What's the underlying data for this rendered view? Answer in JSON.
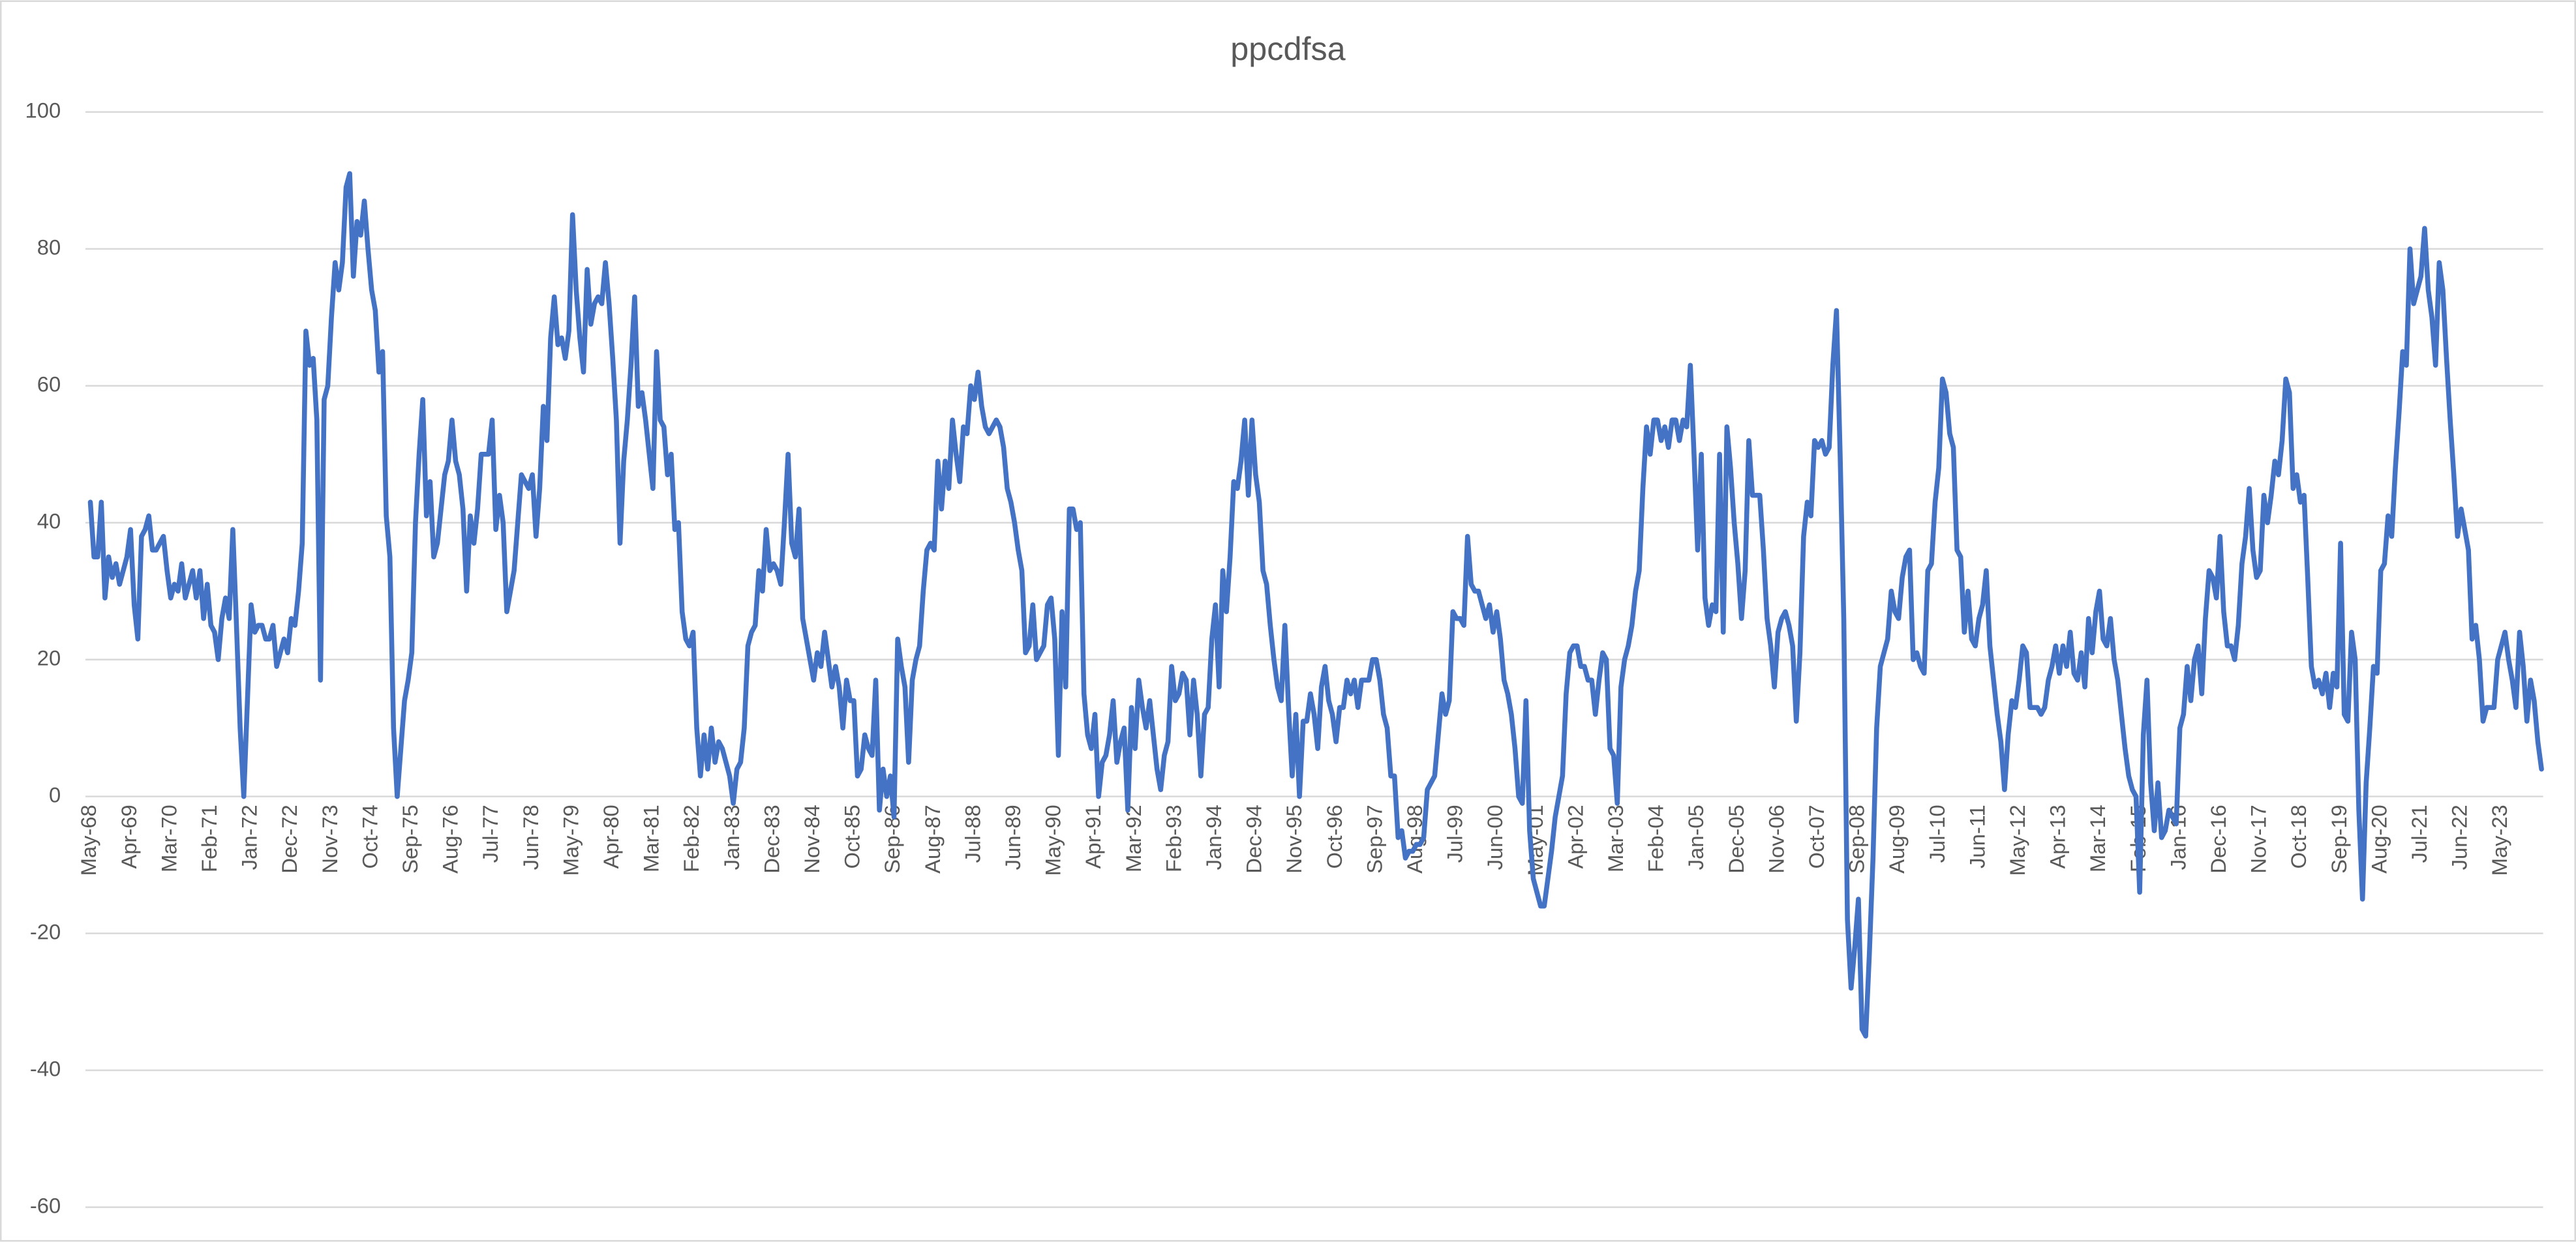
{
  "chart_data": {
    "type": "line",
    "title": "ppcdfsa",
    "categories": [
      "May-68",
      null,
      null,
      null,
      null,
      null,
      null,
      null,
      null,
      null,
      null,
      "Apr-69",
      null,
      null,
      null,
      null,
      null,
      null,
      null,
      null,
      null,
      null,
      "Mar-70",
      null,
      null,
      null,
      null,
      null,
      null,
      null,
      null,
      null,
      null,
      "Feb-71",
      null,
      null,
      null,
      null,
      null,
      null,
      null,
      null,
      null,
      null,
      "Jan-72",
      null,
      null,
      null,
      null,
      null,
      null,
      null,
      null,
      null,
      null,
      "Dec-72",
      null,
      null,
      null,
      null,
      null,
      null,
      null,
      null,
      null,
      null,
      "Nov-73",
      null,
      null,
      null,
      null,
      null,
      null,
      null,
      null,
      null,
      null,
      "Oct-74",
      null,
      null,
      null,
      null,
      null,
      null,
      null,
      null,
      null,
      null,
      "Sep-75",
      null,
      null,
      null,
      null,
      null,
      null,
      null,
      null,
      null,
      null,
      "Aug-76",
      null,
      null,
      null,
      null,
      null,
      null,
      null,
      null,
      null,
      null,
      "Jul-77",
      null,
      null,
      null,
      null,
      null,
      null,
      null,
      null,
      null,
      null,
      "Jun-78",
      null,
      null,
      null,
      null,
      null,
      null,
      null,
      null,
      null,
      null,
      "May-79",
      null,
      null,
      null,
      null,
      null,
      null,
      null,
      null,
      null,
      null,
      "Apr-80",
      null,
      null,
      null,
      null,
      null,
      null,
      null,
      null,
      null,
      null,
      "Mar-81",
      null,
      null,
      null,
      null,
      null,
      null,
      null,
      null,
      null,
      null,
      "Feb-82",
      null,
      null,
      null,
      null,
      null,
      null,
      null,
      null,
      null,
      null,
      "Jan-83",
      null,
      null,
      null,
      null,
      null,
      null,
      null,
      null,
      null,
      null,
      "Dec-83",
      null,
      null,
      null,
      null,
      null,
      null,
      null,
      null,
      null,
      null,
      "Nov-84",
      null,
      null,
      null,
      null,
      null,
      null,
      null,
      null,
      null,
      null,
      "Oct-85",
      null,
      null,
      null,
      null,
      null,
      null,
      null,
      null,
      null,
      null,
      "Sep-86",
      null,
      null,
      null,
      null,
      null,
      null,
      null,
      null,
      null,
      null,
      "Aug-87",
      null,
      null,
      null,
      null,
      null,
      null,
      null,
      null,
      null,
      null,
      "Jul-88",
      null,
      null,
      null,
      null,
      null,
      null,
      null,
      null,
      null,
      null,
      "Jun-89",
      null,
      null,
      null,
      null,
      null,
      null,
      null,
      null,
      null,
      null,
      "May-90",
      null,
      null,
      null,
      null,
      null,
      null,
      null,
      null,
      null,
      null,
      "Apr-91",
      null,
      null,
      null,
      null,
      null,
      null,
      null,
      null,
      null,
      null,
      "Mar-92",
      null,
      null,
      null,
      null,
      null,
      null,
      null,
      null,
      null,
      null,
      "Feb-93",
      null,
      null,
      null,
      null,
      null,
      null,
      null,
      null,
      null,
      null,
      "Jan-94",
      null,
      null,
      null,
      null,
      null,
      null,
      null,
      null,
      null,
      null,
      "Dec-94",
      null,
      null,
      null,
      null,
      null,
      null,
      null,
      null,
      null,
      null,
      "Nov-95",
      null,
      null,
      null,
      null,
      null,
      null,
      null,
      null,
      null,
      null,
      "Oct-96",
      null,
      null,
      null,
      null,
      null,
      null,
      null,
      null,
      null,
      null,
      "Sep-97",
      null,
      null,
      null,
      null,
      null,
      null,
      null,
      null,
      null,
      null,
      "Aug-98",
      null,
      null,
      null,
      null,
      null,
      null,
      null,
      null,
      null,
      null,
      "Jul-99",
      null,
      null,
      null,
      null,
      null,
      null,
      null,
      null,
      null,
      null,
      "Jun-00",
      null,
      null,
      null,
      null,
      null,
      null,
      null,
      null,
      null,
      null,
      "May-01",
      null,
      null,
      null,
      null,
      null,
      null,
      null,
      null,
      null,
      null,
      "Apr-02",
      null,
      null,
      null,
      null,
      null,
      null,
      null,
      null,
      null,
      null,
      "Mar-03",
      null,
      null,
      null,
      null,
      null,
      null,
      null,
      null,
      null,
      null,
      "Feb-04",
      null,
      null,
      null,
      null,
      null,
      null,
      null,
      null,
      null,
      null,
      "Jan-05",
      null,
      null,
      null,
      null,
      null,
      null,
      null,
      null,
      null,
      null,
      "Dec-05",
      null,
      null,
      null,
      null,
      null,
      null,
      null,
      null,
      null,
      null,
      "Nov-06",
      null,
      null,
      null,
      null,
      null,
      null,
      null,
      null,
      null,
      null,
      "Oct-07",
      null,
      null,
      null,
      null,
      null,
      null,
      null,
      null,
      null,
      null,
      "Sep-08",
      null,
      null,
      null,
      null,
      null,
      null,
      null,
      null,
      null,
      null,
      "Aug-09",
      null,
      null,
      null,
      null,
      null,
      null,
      null,
      null,
      null,
      null,
      "Jul-10",
      null,
      null,
      null,
      null,
      null,
      null,
      null,
      null,
      null,
      null,
      "Jun-11",
      null,
      null,
      null,
      null,
      null,
      null,
      null,
      null,
      null,
      null,
      "May-12",
      null,
      null,
      null,
      null,
      null,
      null,
      null,
      null,
      null,
      null,
      "Apr-13",
      null,
      null,
      null,
      null,
      null,
      null,
      null,
      null,
      null,
      null,
      "Mar-14",
      null,
      null,
      null,
      null,
      null,
      null,
      null,
      null,
      null,
      null,
      "Feb-15",
      null,
      null,
      null,
      null,
      null,
      null,
      null,
      null,
      null,
      null,
      "Jan-16",
      null,
      null,
      null,
      null,
      null,
      null,
      null,
      null,
      null,
      null,
      "Dec-16",
      null,
      null,
      null,
      null,
      null,
      null,
      null,
      null,
      null,
      null,
      "Nov-17",
      null,
      null,
      null,
      null,
      null,
      null,
      null,
      null,
      null,
      null,
      "Oct-18",
      null,
      null,
      null,
      null,
      null,
      null,
      null,
      null,
      null,
      null,
      "Sep-19",
      null,
      null,
      null,
      null,
      null,
      null,
      null,
      null,
      null,
      null,
      "Aug-20",
      null,
      null,
      null,
      null,
      null,
      null,
      null,
      null,
      null,
      null,
      "Jul-21",
      null,
      null,
      null,
      null,
      null,
      null,
      null,
      null,
      null,
      null,
      "Jun-22",
      null,
      null,
      null,
      null,
      null,
      null,
      null,
      null,
      null,
      null,
      "May-23",
      null,
      null,
      null,
      null,
      null,
      null,
      null,
      null,
      null,
      null,
      null
    ],
    "values": [
      43,
      35,
      35,
      43,
      29,
      35,
      32,
      34,
      31,
      33,
      35,
      39,
      28,
      23,
      38,
      39,
      41,
      36,
      36,
      37,
      38,
      33,
      29,
      31,
      30,
      34,
      29,
      31,
      33,
      29,
      33,
      26,
      31,
      25,
      24,
      20,
      26,
      29,
      26,
      39,
      25,
      10,
      0,
      14,
      28,
      24,
      25,
      25,
      23,
      23,
      25,
      19,
      21,
      23,
      21,
      26,
      25,
      30,
      37,
      68,
      63,
      64,
      55,
      17,
      58,
      60,
      70,
      78,
      74,
      78,
      89,
      91,
      76,
      84,
      82,
      87,
      80,
      74,
      71,
      62,
      65,
      41,
      35,
      10,
      0,
      7,
      14,
      17,
      21,
      40,
      50,
      58,
      41,
      46,
      35,
      37,
      42,
      47,
      49,
      55,
      49,
      47,
      42,
      30,
      41,
      37,
      42,
      50,
      50,
      50,
      55,
      39,
      44,
      40,
      27,
      30,
      33,
      40,
      47,
      46,
      45,
      47,
      38,
      45,
      57,
      52,
      67,
      73,
      66,
      67,
      64,
      68,
      85,
      74,
      67,
      62,
      77,
      69,
      72,
      73,
      72,
      78,
      72,
      64,
      55,
      37,
      49,
      55,
      63,
      73,
      57,
      59,
      55,
      50,
      45,
      65,
      55,
      54,
      47,
      50,
      39,
      40,
      27,
      23,
      22,
      24,
      10,
      3,
      9,
      4,
      10,
      5,
      8,
      7,
      5,
      3,
      -1,
      4,
      5,
      10,
      22,
      24,
      25,
      33,
      30,
      39,
      33,
      34,
      33,
      31,
      40,
      50,
      37,
      35,
      42,
      26,
      23,
      20,
      17,
      21,
      19,
      24,
      20,
      16,
      19,
      16,
      10,
      17,
      14,
      14,
      3,
      4,
      9,
      7,
      6,
      17,
      -2,
      4,
      0,
      3,
      -3,
      23,
      19,
      16,
      5,
      17,
      20,
      22,
      30,
      36,
      37,
      36,
      49,
      42,
      49,
      45,
      55,
      50,
      46,
      54,
      53,
      60,
      58,
      62,
      57,
      54,
      53,
      54,
      55,
      54,
      51,
      45,
      43,
      40,
      36,
      33,
      21,
      22,
      28,
      20,
      21,
      22,
      28,
      29,
      23,
      6,
      27,
      16,
      42,
      42,
      39,
      40,
      15,
      9,
      7,
      12,
      0,
      5,
      6,
      9,
      14,
      5,
      8,
      10,
      -2,
      13,
      7,
      17,
      13,
      10,
      14,
      9,
      4,
      1,
      6,
      8,
      19,
      14,
      15,
      18,
      17,
      9,
      17,
      12,
      3,
      12,
      13,
      23,
      28,
      16,
      33,
      27,
      35,
      46,
      45,
      49,
      55,
      44,
      55,
      47,
      43,
      33,
      31,
      25,
      20,
      16,
      14,
      25,
      13,
      3,
      12,
      0,
      11,
      11,
      15,
      12,
      7,
      16,
      19,
      14,
      12,
      8,
      13,
      13,
      17,
      15,
      17,
      13,
      17,
      17,
      17,
      20,
      20,
      17,
      12,
      10,
      3,
      3,
      -6,
      -5,
      -9,
      -8,
      -8,
      -7,
      -7,
      -6,
      1,
      2,
      3,
      9,
      15,
      12,
      14,
      27,
      26,
      26,
      25,
      38,
      31,
      30,
      30,
      28,
      26,
      28,
      24,
      27,
      23,
      17,
      15,
      12,
      7,
      0,
      -1,
      14,
      -5,
      -12,
      -14,
      -16,
      -16,
      -12,
      -8,
      -3,
      0,
      3,
      15,
      21,
      22,
      22,
      19,
      19,
      17,
      17,
      12,
      17,
      21,
      20,
      7,
      6,
      -1,
      16,
      20,
      22,
      25,
      30,
      33,
      45,
      54,
      50,
      55,
      55,
      52,
      54,
      51,
      55,
      55,
      52,
      55,
      54,
      63,
      50,
      36,
      50,
      29,
      25,
      28,
      27,
      50,
      24,
      54,
      48,
      40,
      34,
      26,
      33,
      52,
      44,
      44,
      44,
      36,
      26,
      22,
      16,
      24,
      26,
      27,
      25,
      22,
      11,
      21,
      38,
      43,
      41,
      52,
      51,
      52,
      50,
      51,
      63,
      71,
      50,
      26,
      -18,
      -28,
      -22,
      -15,
      -34,
      -35,
      -23,
      -9,
      10,
      19,
      21,
      23,
      30,
      27,
      26,
      32,
      35,
      36,
      20,
      21,
      19,
      18,
      33,
      34,
      43,
      48,
      61,
      59,
      53,
      51,
      36,
      35,
      24,
      30,
      23,
      22,
      26,
      28,
      33,
      22,
      17,
      12,
      8,
      1,
      9,
      14,
      13,
      17,
      22,
      21,
      13,
      13,
      13,
      12,
      13,
      17,
      19,
      22,
      18,
      22,
      19,
      24,
      18,
      17,
      21,
      16,
      26,
      21,
      27,
      30,
      23,
      22,
      26,
      20,
      17,
      12,
      7,
      3,
      1,
      0,
      -14,
      9,
      17,
      2,
      -5,
      2,
      -6,
      -5,
      -2,
      -3,
      -4,
      10,
      12,
      19,
      14,
      20,
      22,
      15,
      26,
      33,
      32,
      29,
      38,
      27,
      22,
      22,
      20,
      25,
      34,
      38,
      45,
      36,
      32,
      33,
      44,
      40,
      44,
      49,
      47,
      52,
      61,
      59,
      45,
      47,
      43,
      44,
      32,
      19,
      16,
      17,
      15,
      18,
      13,
      18,
      16,
      37,
      12,
      11,
      24,
      20,
      -2,
      -15,
      2,
      10,
      19,
      18,
      33,
      34,
      41,
      38,
      48,
      56,
      65,
      63,
      80,
      72,
      74,
      76,
      83,
      74,
      70,
      63,
      78,
      74,
      64,
      55,
      47,
      38,
      42,
      39,
      36,
      23,
      25,
      20,
      11,
      13,
      13,
      13,
      20,
      22,
      24,
      20,
      17,
      13,
      24,
      19,
      11,
      17,
      14,
      8,
      4
    ],
    "color": "#4472c4",
    "ylim": [
      -60,
      100
    ],
    "yticks": [
      -60,
      -40,
      -20,
      0,
      20,
      40,
      60,
      80,
      100
    ],
    "grid": true
  }
}
